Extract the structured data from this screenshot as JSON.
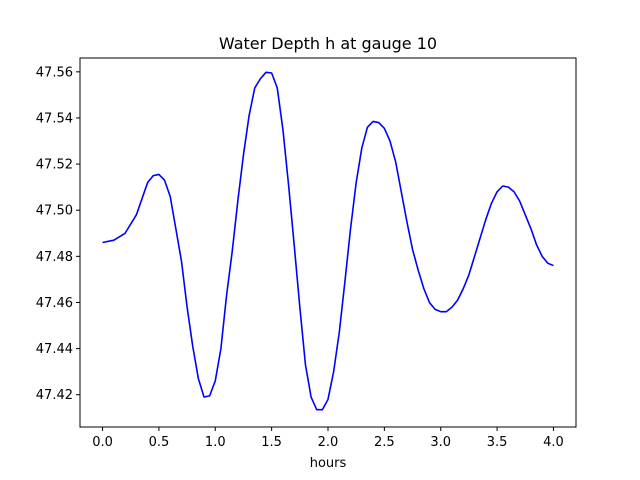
{
  "chart_data": {
    "type": "line",
    "title": "Water Depth h at gauge 10",
    "xlabel": "hours",
    "ylabel": "",
    "xlim": [
      -0.2,
      4.2
    ],
    "ylim": [
      47.406,
      47.566
    ],
    "xticks": [
      0.0,
      0.5,
      1.0,
      1.5,
      2.0,
      2.5,
      3.0,
      3.5,
      4.0
    ],
    "xtick_labels": [
      "0.0",
      "0.5",
      "1.0",
      "1.5",
      "2.0",
      "2.5",
      "3.0",
      "3.5",
      "4.0"
    ],
    "yticks": [
      47.42,
      47.44,
      47.46,
      47.48,
      47.5,
      47.52,
      47.54,
      47.56
    ],
    "ytick_labels": [
      "47.42",
      "47.44",
      "47.46",
      "47.48",
      "47.50",
      "47.52",
      "47.54",
      "47.56"
    ],
    "grid": false,
    "series": [
      {
        "color": "#0000ff",
        "x": [
          0.0,
          0.1,
          0.2,
          0.3,
          0.35,
          0.4,
          0.45,
          0.5,
          0.55,
          0.6,
          0.65,
          0.7,
          0.75,
          0.8,
          0.85,
          0.9,
          0.95,
          1.0,
          1.05,
          1.1,
          1.15,
          1.2,
          1.25,
          1.3,
          1.35,
          1.4,
          1.45,
          1.5,
          1.55,
          1.6,
          1.65,
          1.7,
          1.75,
          1.8,
          1.85,
          1.9,
          1.95,
          2.0,
          2.05,
          2.1,
          2.15,
          2.2,
          2.25,
          2.3,
          2.35,
          2.4,
          2.45,
          2.5,
          2.55,
          2.6,
          2.65,
          2.7,
          2.75,
          2.8,
          2.85,
          2.9,
          2.95,
          3.0,
          3.05,
          3.1,
          3.15,
          3.2,
          3.25,
          3.3,
          3.35,
          3.4,
          3.45,
          3.5,
          3.55,
          3.6,
          3.65,
          3.7,
          3.75,
          3.8,
          3.85,
          3.9,
          3.95,
          4.0
        ],
        "y": [
          47.486,
          47.487,
          47.49,
          47.498,
          47.505,
          47.512,
          47.515,
          47.5155,
          47.513,
          47.506,
          47.492,
          47.478,
          47.458,
          47.441,
          47.427,
          47.419,
          47.4195,
          47.426,
          47.44,
          47.463,
          47.482,
          47.504,
          47.524,
          47.541,
          47.553,
          47.557,
          47.5598,
          47.5595,
          47.553,
          47.535,
          47.511,
          47.485,
          47.458,
          47.433,
          47.419,
          47.4135,
          47.4135,
          47.418,
          47.43,
          47.447,
          47.469,
          47.492,
          47.512,
          47.527,
          47.536,
          47.5385,
          47.538,
          47.5355,
          47.53,
          47.521,
          47.508,
          47.495,
          47.483,
          47.474,
          47.466,
          47.46,
          47.457,
          47.456,
          47.456,
          47.458,
          47.461,
          47.466,
          47.472,
          47.48,
          47.488,
          47.496,
          47.503,
          47.508,
          47.5105,
          47.51,
          47.508,
          47.504,
          47.498,
          47.492,
          47.485,
          47.48,
          47.477,
          47.476
        ]
      }
    ]
  }
}
